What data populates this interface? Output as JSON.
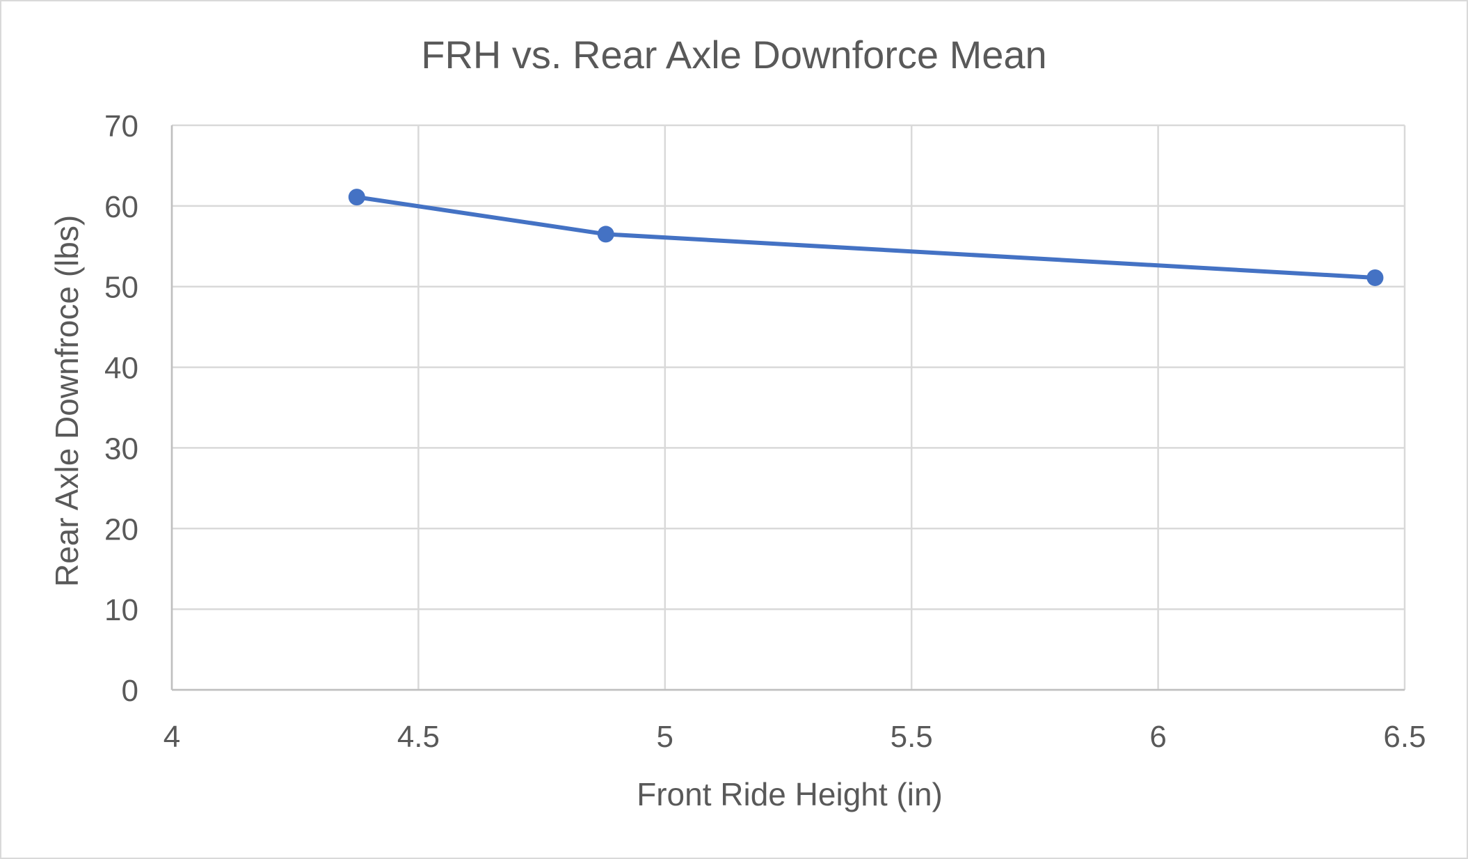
{
  "chart_data": {
    "type": "line",
    "title": "FRH vs. Rear Axle Downforce Mean",
    "xlabel": "Front Ride Height (in)",
    "ylabel": "Rear Axle Downfroce (lbs)",
    "xlim": [
      4,
      6.5
    ],
    "ylim": [
      0,
      70
    ],
    "x_ticks": [
      4,
      4.5,
      5,
      5.5,
      6,
      6.5
    ],
    "x_tick_labels": [
      "4",
      "4.5",
      "5",
      "5.5",
      "6",
      "6.5"
    ],
    "y_ticks": [
      0,
      10,
      20,
      30,
      40,
      50,
      60,
      70
    ],
    "y_tick_labels": [
      "0",
      "10",
      "20",
      "30",
      "40",
      "50",
      "60",
      "70"
    ],
    "grid": true,
    "legend": "none",
    "series": [
      {
        "color": "#4472c4",
        "marker": "circle",
        "points": [
          {
            "x": 4.375,
            "y": 61.1
          },
          {
            "x": 4.88,
            "y": 56.5
          },
          {
            "x": 6.44,
            "y": 51.1
          }
        ]
      }
    ]
  }
}
